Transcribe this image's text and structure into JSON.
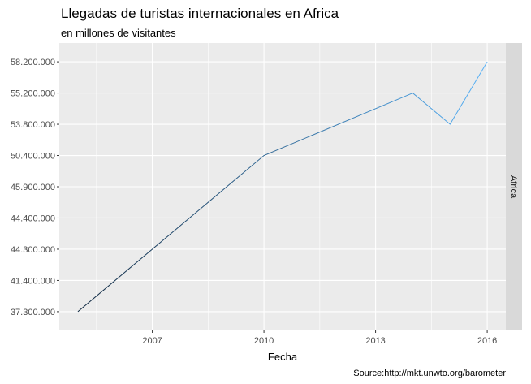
{
  "chart_data": {
    "type": "line",
    "title": "Llegadas de turistas internacionales en Africa",
    "subtitle": "en millones de visitantes",
    "xlabel": "Fecha",
    "ylabel": "",
    "caption": "Source:http://mkt.unwto.org/barometer",
    "facet_label": "Africa",
    "x_ticks": [
      "2007",
      "2010",
      "2013",
      "2016"
    ],
    "y_categories": [
      "37.300.000",
      "41.400.000",
      "44.300.000",
      "44.400.000",
      "45.900.000",
      "50.400.000",
      "53.800.000",
      "55.200.000",
      "58.200.000"
    ],
    "xlim": [
      2004.5,
      2016.5
    ],
    "series": [
      {
        "x": [
          2005,
          2010,
          2014,
          2015,
          2016
        ],
        "y": [
          "37.300.000",
          "50.400.000",
          "55.200.000",
          "53.800.000",
          "58.200.000"
        ]
      }
    ],
    "grid": true,
    "line_gradient": [
      "#132b43",
      "#56b1f7"
    ]
  }
}
